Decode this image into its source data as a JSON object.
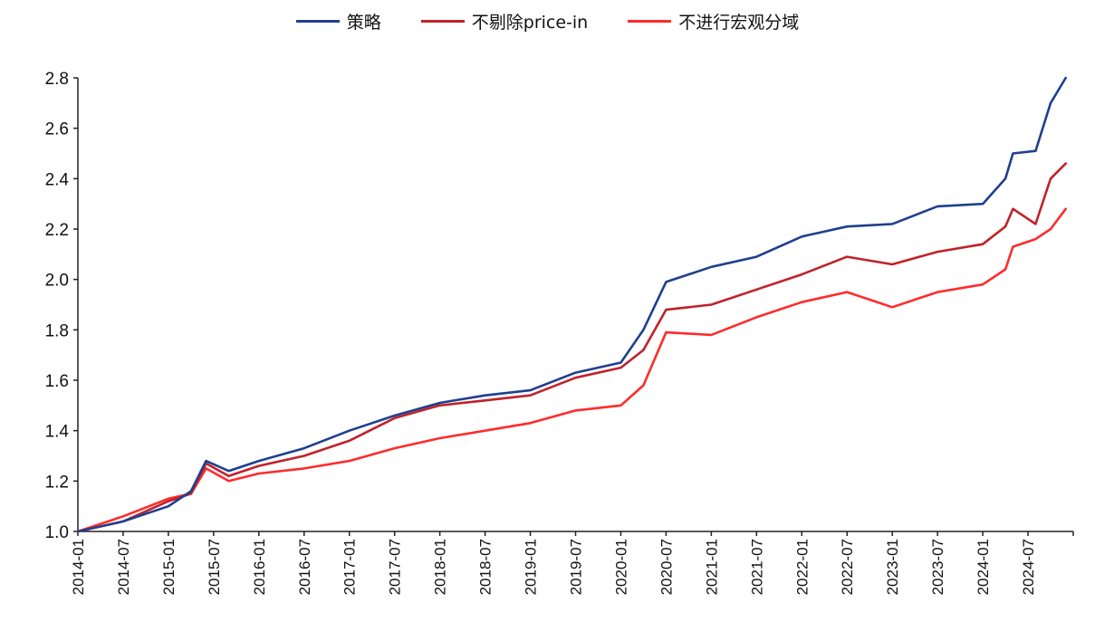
{
  "chart_data": {
    "type": "line",
    "title": "",
    "xlabel": "",
    "ylabel": "",
    "ylim": [
      1.0,
      2.8
    ],
    "yticks": [
      "1.0",
      "1.2",
      "1.4",
      "1.6",
      "1.8",
      "2.0",
      "2.2",
      "2.4",
      "2.6",
      "2.8"
    ],
    "xlim": [
      "2014-01",
      "2024-12"
    ],
    "xtick_labels": [
      "2014-01",
      "2014-07",
      "2015-01",
      "2015-07",
      "2016-01",
      "2016-07",
      "2017-01",
      "2017-07",
      "2018-01",
      "2018-07",
      "2019-01",
      "2019-07",
      "2020-01",
      "2020-07",
      "2021-01",
      "2021-07",
      "2022-01",
      "2022-07",
      "2023-01",
      "2023-07",
      "2024-01",
      "2024-07"
    ],
    "grid": false,
    "legend_position": "top-center",
    "x": [
      "2014-01",
      "2014-07",
      "2015-01",
      "2015-04",
      "2015-06",
      "2015-09",
      "2016-01",
      "2016-07",
      "2017-01",
      "2017-07",
      "2018-01",
      "2018-07",
      "2019-01",
      "2019-07",
      "2020-01",
      "2020-04",
      "2020-07",
      "2021-01",
      "2021-07",
      "2022-01",
      "2022-07",
      "2023-01",
      "2023-07",
      "2024-01",
      "2024-04",
      "2024-05",
      "2024-08",
      "2024-10",
      "2024-12"
    ],
    "series": [
      {
        "name": "策略",
        "color": "#1f3f8f",
        "values": [
          1.0,
          1.04,
          1.1,
          1.16,
          1.28,
          1.24,
          1.28,
          1.33,
          1.4,
          1.46,
          1.51,
          1.54,
          1.56,
          1.63,
          1.67,
          1.8,
          1.99,
          2.05,
          2.09,
          2.17,
          2.21,
          2.22,
          2.29,
          2.3,
          2.4,
          2.5,
          2.51,
          2.7,
          2.8
        ]
      },
      {
        "name": "不剔除price-in",
        "color": "#c0222a",
        "values": [
          1.0,
          1.04,
          1.12,
          1.15,
          1.27,
          1.22,
          1.26,
          1.3,
          1.36,
          1.45,
          1.5,
          1.52,
          1.54,
          1.61,
          1.65,
          1.72,
          1.88,
          1.9,
          1.96,
          2.02,
          2.09,
          2.06,
          2.11,
          2.14,
          2.21,
          2.28,
          2.22,
          2.4,
          2.46
        ]
      },
      {
        "name": "不进行宏观分域",
        "color": "#ff2b2b",
        "values": [
          1.0,
          1.06,
          1.13,
          1.15,
          1.25,
          1.2,
          1.23,
          1.25,
          1.28,
          1.33,
          1.37,
          1.4,
          1.43,
          1.48,
          1.5,
          1.58,
          1.79,
          1.78,
          1.85,
          1.91,
          1.95,
          1.89,
          1.95,
          1.98,
          2.04,
          2.13,
          2.16,
          2.2,
          2.28
        ]
      }
    ]
  }
}
